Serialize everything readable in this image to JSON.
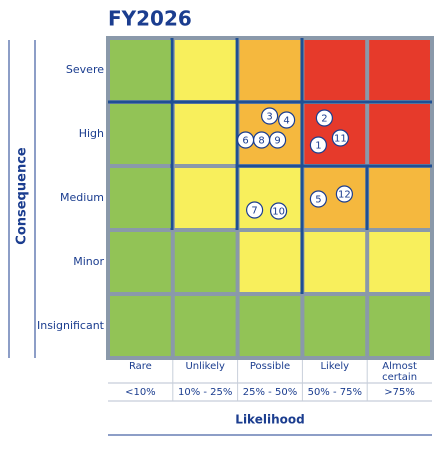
{
  "title": "FY2026",
  "consequence_axis": {
    "label": "Consequence",
    "levels": [
      "Severe",
      "High",
      "Medium",
      "Minor",
      "Insignificant"
    ]
  },
  "likelihood_axis": {
    "label": "Likelihood",
    "levels": [
      {
        "label": "Rare",
        "range": "<10%"
      },
      {
        "label": "Unlikely",
        "range": "10% - 25%"
      },
      {
        "label": "Possible",
        "range": "25% - 50%"
      },
      {
        "label": "Likely",
        "range": "50% - 75%"
      },
      {
        "label": "Almost certain",
        "range": ">75%"
      }
    ]
  },
  "grid": {
    "rows": [
      {
        "cells": [
          {
            "color": "#92c356",
            "markers": []
          },
          {
            "color": "#f8ef5c",
            "markers": []
          },
          {
            "color": "#f5b83e",
            "markers": []
          },
          {
            "color": "#e63a2b",
            "markers": []
          },
          {
            "color": "#e63a2b",
            "markers": []
          }
        ]
      },
      {
        "cells": [
          {
            "color": "#92c356",
            "markers": []
          },
          {
            "color": "#f8ef5c",
            "markers": []
          },
          {
            "color": "#f5b83e",
            "markers": [
              "3",
              "4",
              "6",
              "8",
              "9"
            ]
          },
          {
            "color": "#e63a2b",
            "markers": [
              "2",
              "11",
              "1"
            ]
          },
          {
            "color": "#e63a2b",
            "markers": []
          }
        ]
      },
      {
        "cells": [
          {
            "color": "#92c356",
            "markers": []
          },
          {
            "color": "#f8ef5c",
            "markers": []
          },
          {
            "color": "#f8ef5c",
            "markers": [
              "7",
              "10"
            ]
          },
          {
            "color": "#f5b83e",
            "markers": [
              "5",
              "12"
            ]
          },
          {
            "color": "#f5b83e",
            "markers": []
          }
        ]
      },
      {
        "cells": [
          {
            "color": "#92c356",
            "markers": []
          },
          {
            "color": "#92c356",
            "markers": []
          },
          {
            "color": "#f8ef5c",
            "markers": []
          },
          {
            "color": "#f8ef5c",
            "markers": []
          },
          {
            "color": "#f8ef5c",
            "markers": []
          }
        ]
      },
      {
        "cells": [
          {
            "color": "#92c356",
            "markers": []
          },
          {
            "color": "#92c356",
            "markers": []
          },
          {
            "color": "#92c356",
            "markers": []
          },
          {
            "color": "#92c356",
            "markers": []
          },
          {
            "color": "#92c356",
            "markers": []
          }
        ]
      }
    ]
  }
}
